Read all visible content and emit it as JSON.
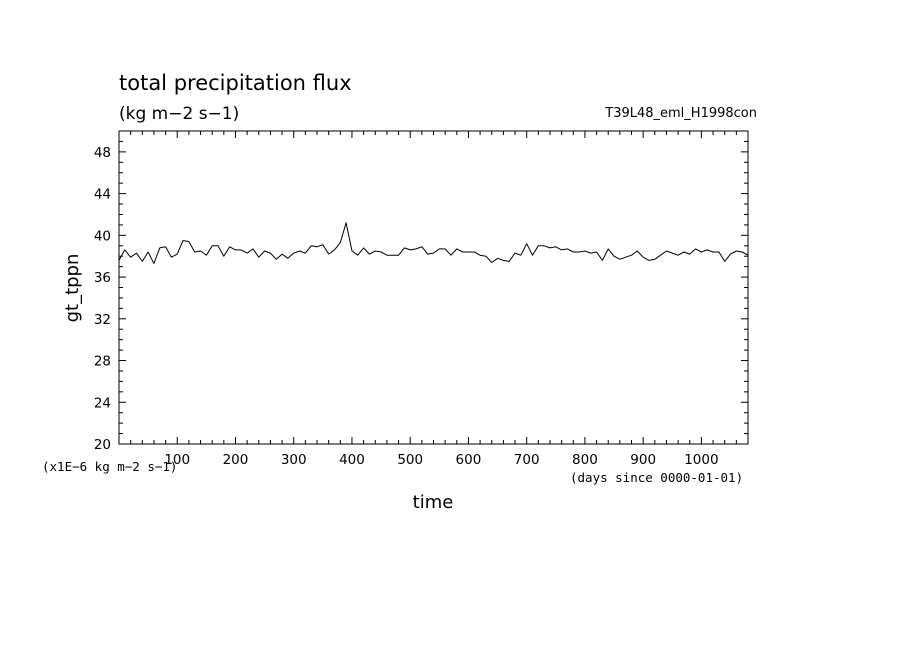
{
  "chart_data": {
    "type": "line",
    "title": "total precipitation flux",
    "subtitle": "(kg m−2 s−1)",
    "run_label": "T39L48_eml_H1998con",
    "xlabel": "time",
    "ylabel": "gt_tppn",
    "x_unit_note": "(days since 0000-01-01)",
    "y_unit_note": "(x1E−6 kg m−2 s−1)",
    "xlim": [
      0,
      1080
    ],
    "ylim": [
      20,
      50
    ],
    "x_ticks": [
      100,
      200,
      300,
      400,
      500,
      600,
      700,
      800,
      900,
      1000
    ],
    "x_tick_labels": [
      "100",
      "200",
      "300",
      "400",
      "500",
      "600",
      "700",
      "800",
      "900",
      "1000"
    ],
    "y_ticks": [
      20,
      24,
      28,
      32,
      36,
      40,
      44,
      48
    ],
    "y_tick_labels": [
      "20",
      "24",
      "28",
      "32",
      "36",
      "40",
      "44",
      "48"
    ],
    "grid": false,
    "series": [
      {
        "color": "#000000",
        "x": [
          0,
          10,
          20,
          30,
          40,
          50,
          60,
          70,
          80,
          90,
          100,
          110,
          120,
          130,
          140,
          150,
          160,
          170,
          180,
          190,
          200,
          210,
          220,
          230,
          240,
          250,
          260,
          270,
          280,
          290,
          300,
          310,
          320,
          330,
          340,
          350,
          360,
          370,
          380,
          390,
          400,
          410,
          420,
          430,
          440,
          450,
          460,
          470,
          480,
          490,
          500,
          510,
          520,
          530,
          540,
          550,
          560,
          570,
          580,
          590,
          600,
          610,
          620,
          630,
          640,
          650,
          660,
          670,
          680,
          690,
          700,
          710,
          720,
          730,
          740,
          750,
          760,
          770,
          780,
          790,
          800,
          810,
          820,
          830,
          840,
          850,
          860,
          870,
          880,
          890,
          900,
          910,
          920,
          930,
          940,
          950,
          960,
          970,
          980,
          990,
          1000,
          1010,
          1020,
          1030,
          1040,
          1050,
          1060,
          1070,
          1080
        ],
        "y": [
          37.6,
          38.6,
          37.9,
          38.3,
          37.5,
          38.4,
          37.3,
          38.8,
          38.9,
          37.9,
          38.2,
          39.5,
          39.4,
          38.4,
          38.5,
          38.1,
          39.0,
          39.0,
          38.0,
          38.9,
          38.6,
          38.6,
          38.3,
          38.7,
          37.9,
          38.5,
          38.3,
          37.7,
          38.2,
          37.8,
          38.3,
          38.5,
          38.3,
          39.0,
          38.9,
          39.1,
          38.2,
          38.6,
          39.3,
          41.2,
          38.5,
          38.1,
          38.8,
          38.2,
          38.5,
          38.4,
          38.1,
          38.1,
          38.1,
          38.8,
          38.6,
          38.7,
          38.9,
          38.2,
          38.3,
          38.7,
          38.7,
          38.1,
          38.7,
          38.4,
          38.4,
          38.4,
          38.1,
          38.0,
          37.4,
          37.8,
          37.6,
          37.5,
          38.3,
          38.1,
          39.2,
          38.1,
          39.0,
          39.0,
          38.8,
          38.9,
          38.6,
          38.7,
          38.4,
          38.4,
          38.5,
          38.3,
          38.4,
          37.6,
          38.7,
          38.0,
          37.7,
          37.9,
          38.1,
          38.5,
          37.9,
          37.6,
          37.7,
          38.1,
          38.5,
          38.3,
          38.1,
          38.4,
          38.2,
          38.7,
          38.4,
          38.6,
          38.4,
          38.4,
          37.5,
          38.2,
          38.5,
          38.4,
          38.1
        ]
      }
    ]
  }
}
